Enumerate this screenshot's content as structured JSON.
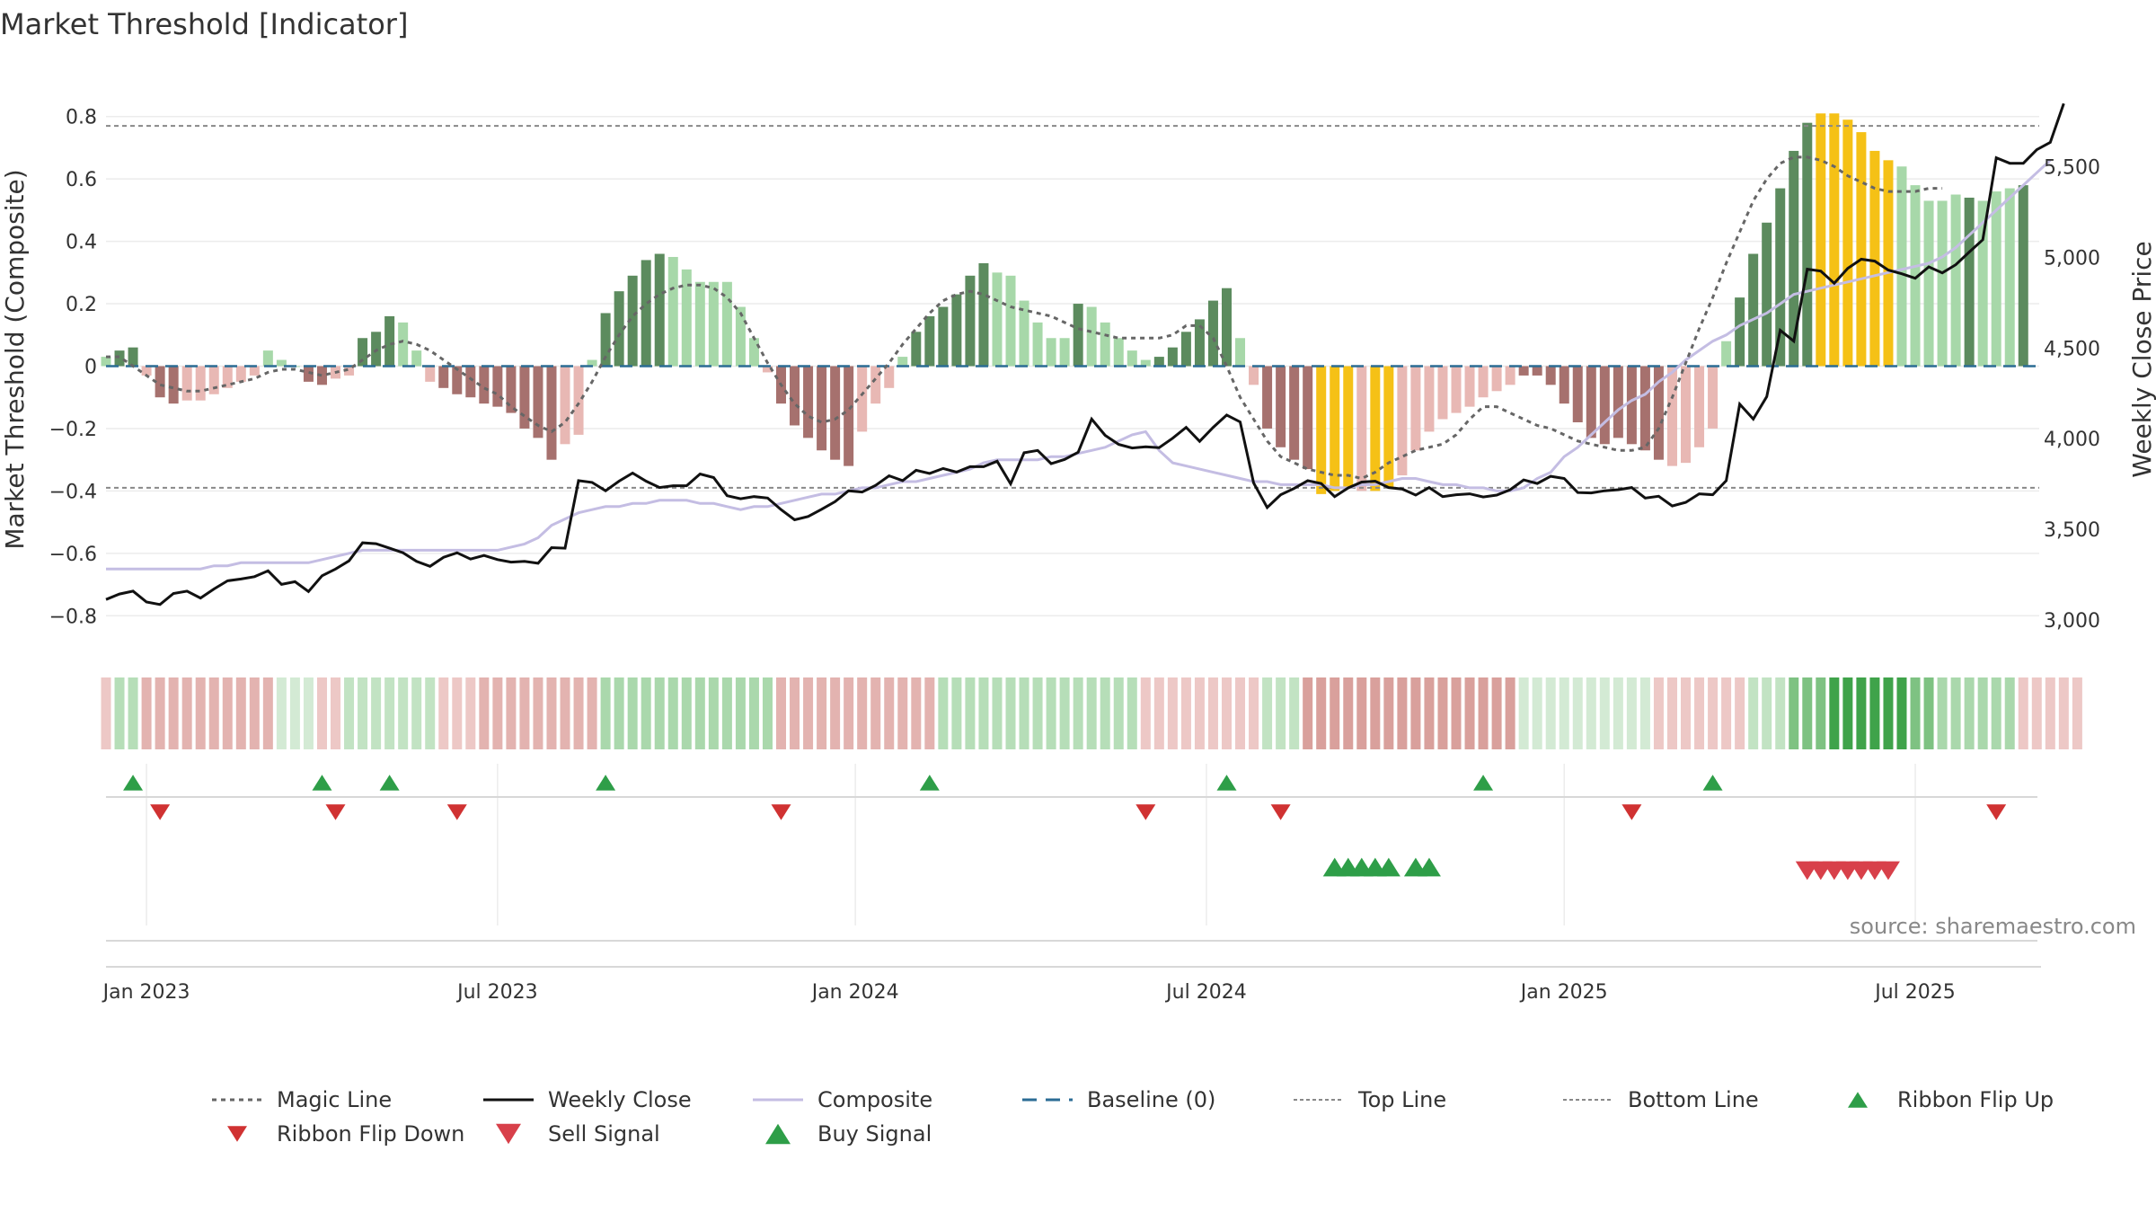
{
  "chart_data": {
    "type": "bar",
    "title": "Market Threshold [Indicator]",
    "ylabel_left": "Market Threshold (Composite)",
    "ylabel_right": "Weekly Close Price",
    "ylim_left": [
      -0.9,
      0.9
    ],
    "ylim_right": [
      2850,
      5950
    ],
    "left_ticks": [
      {
        "v": 0.8,
        "label": "0.8"
      },
      {
        "v": 0.6,
        "label": "0.6"
      },
      {
        "v": 0.4,
        "label": "0.4"
      },
      {
        "v": 0.2,
        "label": "0.2"
      },
      {
        "v": 0,
        "label": "0"
      },
      {
        "v": -0.2,
        "label": "−0.2"
      },
      {
        "v": -0.4,
        "label": "−0.4"
      },
      {
        "v": -0.6,
        "label": "−0.6"
      },
      {
        "v": -0.8,
        "label": "−0.8"
      }
    ],
    "right_ticks": [
      {
        "v": 5500,
        "label": "5,500"
      },
      {
        "v": 5000,
        "label": "5,000"
      },
      {
        "v": 4500,
        "label": "4,500"
      },
      {
        "v": 4000,
        "label": "4,000"
      },
      {
        "v": 3500,
        "label": "3,500"
      },
      {
        "v": 3000,
        "label": "3,000"
      }
    ],
    "x_ticks": [
      {
        "week": 3,
        "label": "Jan 2023"
      },
      {
        "week": 29,
        "label": "Jul 2023"
      },
      {
        "week": 55.5,
        "label": "Jan 2024"
      },
      {
        "week": 81.5,
        "label": "Jul 2024"
      },
      {
        "week": 108,
        "label": "Jan 2025"
      },
      {
        "week": 134,
        "label": "Jul 2025"
      }
    ],
    "top_line": 0.77,
    "bottom_line": -0.39,
    "baseline": 0,
    "source": "source: sharemaestro.com",
    "legend": [
      {
        "key": "magic",
        "label": "Magic Line"
      },
      {
        "key": "close",
        "label": "Weekly Close"
      },
      {
        "key": "composite",
        "label": "Composite"
      },
      {
        "key": "baseline",
        "label": "Baseline (0)"
      },
      {
        "key": "topline",
        "label": "Top Line"
      },
      {
        "key": "bottomline",
        "label": "Bottom Line"
      },
      {
        "key": "flipup",
        "label": "Ribbon Flip Up"
      },
      {
        "key": "flipdown",
        "label": "Ribbon Flip Down"
      },
      {
        "key": "sell",
        "label": "Sell Signal"
      },
      {
        "key": "buy",
        "label": "Buy Signal"
      }
    ],
    "bars": [
      0.03,
      0.05,
      0.06,
      -0.03,
      -0.1,
      -0.12,
      -0.11,
      -0.11,
      -0.09,
      -0.07,
      -0.05,
      -0.03,
      0.05,
      0.02,
      0,
      -0.05,
      -0.06,
      -0.04,
      -0.03,
      0.09,
      0.11,
      0.16,
      0.14,
      0.05,
      -0.05,
      -0.07,
      -0.09,
      -0.1,
      -0.12,
      -0.13,
      -0.15,
      -0.2,
      -0.23,
      -0.3,
      -0.25,
      -0.22,
      0.02,
      0.17,
      0.24,
      0.29,
      0.34,
      0.36,
      0.35,
      0.31,
      0.27,
      0.27,
      0.27,
      0.19,
      0.09,
      -0.02,
      -0.12,
      -0.19,
      -0.23,
      -0.27,
      -0.3,
      -0.32,
      -0.21,
      -0.12,
      -0.07,
      0.03,
      0.11,
      0.16,
      0.19,
      0.23,
      0.29,
      0.33,
      0.3,
      0.29,
      0.21,
      0.14,
      0.09,
      0.09,
      0.2,
      0.19,
      0.14,
      0.09,
      0.05,
      0.02,
      0.03,
      0.06,
      0.11,
      0.15,
      0.21,
      0.25,
      0.09,
      -0.06,
      -0.2,
      -0.26,
      -0.3,
      -0.33,
      -0.41,
      -0.4,
      -0.39,
      -0.4,
      -0.4,
      -0.39,
      -0.35,
      -0.27,
      -0.21,
      -0.17,
      -0.15,
      -0.13,
      -0.1,
      -0.08,
      -0.06,
      -0.03,
      -0.03,
      -0.06,
      -0.12,
      -0.18,
      -0.23,
      -0.25,
      -0.23,
      -0.25,
      -0.27,
      -0.3,
      -0.32,
      -0.31,
      -0.26,
      -0.2,
      0.08,
      0.22,
      0.36,
      0.46,
      0.57,
      0.69,
      0.78,
      0.81,
      0.81,
      0.79,
      0.75,
      0.69,
      0.66,
      0.64,
      0.58,
      0.53,
      0.53,
      0.55,
      0.54,
      0.53,
      0.56,
      0.57,
      0.58
    ],
    "bar_colors": [
      "#a7d8a9",
      "#5c8b5e",
      "#5c8b5e",
      "#e8b8b4",
      "#a6716e",
      "#a6716e",
      "#e8b8b4",
      "#e8b8b4",
      "#e8b8b4",
      "#e8b8b4",
      "#e8b8b4",
      "#e8b8b4",
      "#a7d8a9",
      "#a7d8a9",
      "#a7d8a9",
      "#a6716e",
      "#a6716e",
      "#e8b8b4",
      "#e8b8b4",
      "#5c8b5e",
      "#5c8b5e",
      "#5c8b5e",
      "#a7d8a9",
      "#a7d8a9",
      "#e8b8b4",
      "#a6716e",
      "#a6716e",
      "#a6716e",
      "#a6716e",
      "#a6716e",
      "#a6716e",
      "#a6716e",
      "#a6716e",
      "#a6716e",
      "#e8b8b4",
      "#e8b8b4",
      "#a7d8a9",
      "#5c8b5e",
      "#5c8b5e",
      "#5c8b5e",
      "#5c8b5e",
      "#5c8b5e",
      "#a7d8a9",
      "#a7d8a9",
      "#a7d8a9",
      "#a7d8a9",
      "#a7d8a9",
      "#a7d8a9",
      "#a7d8a9",
      "#e8b8b4",
      "#a6716e",
      "#a6716e",
      "#a6716e",
      "#a6716e",
      "#a6716e",
      "#a6716e",
      "#e8b8b4",
      "#e8b8b4",
      "#e8b8b4",
      "#a7d8a9",
      "#5c8b5e",
      "#5c8b5e",
      "#5c8b5e",
      "#5c8b5e",
      "#5c8b5e",
      "#5c8b5e",
      "#a7d8a9",
      "#a7d8a9",
      "#a7d8a9",
      "#a7d8a9",
      "#a7d8a9",
      "#a7d8a9",
      "#5c8b5e",
      "#a7d8a9",
      "#a7d8a9",
      "#a7d8a9",
      "#a7d8a9",
      "#a7d8a9",
      "#5c8b5e",
      "#5c8b5e",
      "#5c8b5e",
      "#5c8b5e",
      "#5c8b5e",
      "#5c8b5e",
      "#a7d8a9",
      "#e8b8b4",
      "#a6716e",
      "#a6716e",
      "#a6716e",
      "#a6716e",
      "#f5c116",
      "#f5c116",
      "#f5c116",
      "#e8b8b4",
      "#f5c116",
      "#f5c116",
      "#e8b8b4",
      "#e8b8b4",
      "#e8b8b4",
      "#e8b8b4",
      "#e8b8b4",
      "#e8b8b4",
      "#e8b8b4",
      "#e8b8b4",
      "#e8b8b4",
      "#a6716e",
      "#a6716e",
      "#a6716e",
      "#a6716e",
      "#a6716e",
      "#a6716e",
      "#a6716e",
      "#a6716e",
      "#a6716e",
      "#a6716e",
      "#a6716e",
      "#e8b8b4",
      "#e8b8b4",
      "#e8b8b4",
      "#e8b8b4",
      "#a7d8a9",
      "#5c8b5e",
      "#5c8b5e",
      "#5c8b5e",
      "#5c8b5e",
      "#5c8b5e",
      "#5c8b5e",
      "#f5c116",
      "#f5c116",
      "#f5c116",
      "#f5c116",
      "#f5c116",
      "#f5c116",
      "#a7d8a9",
      "#a7d8a9",
      "#a7d8a9",
      "#a7d8a9",
      "#a7d8a9",
      "#5c8b5e",
      "#a7d8a9",
      "#a7d8a9",
      "#a7d8a9",
      "#5c8b5e",
      "#5c8b5e"
    ],
    "ribbon_colors": [
      "#edc8c6",
      "#b6deb8",
      "#b6deb8",
      "#e3b3b0",
      "#e3b3b0",
      "#e3b3b0",
      "#e3b3b0",
      "#e3b3b0",
      "#e3b3b0",
      "#e3b3b0",
      "#e3b3b0",
      "#e3b3b0",
      "#e3b3b0",
      "#d3ead4",
      "#d3ead4",
      "#d3ead4",
      "#edc8c6",
      "#edc8c6",
      "#c2e3c3",
      "#c2e3c3",
      "#c2e3c3",
      "#c2e3c3",
      "#c2e3c3",
      "#c2e3c3",
      "#c2e3c3",
      "#edc8c6",
      "#edc8c6",
      "#edc8c6",
      "#e3b3b0",
      "#e3b3b0",
      "#e3b3b0",
      "#e3b3b0",
      "#e3b3b0",
      "#e3b3b0",
      "#e3b3b0",
      "#e3b3b0",
      "#e3b3b0",
      "#aad8ac",
      "#aad8ac",
      "#aad8ac",
      "#aad8ac",
      "#aad8ac",
      "#aad8ac",
      "#aad8ac",
      "#aad8ac",
      "#aad8ac",
      "#aad8ac",
      "#aad8ac",
      "#aad8ac",
      "#aad8ac",
      "#e3b3b0",
      "#e3b3b0",
      "#e3b3b0",
      "#e3b3b0",
      "#e3b3b0",
      "#e3b3b0",
      "#e3b3b0",
      "#e3b3b0",
      "#e3b3b0",
      "#e3b3b0",
      "#e3b3b0",
      "#e3b3b0",
      "#b6deb8",
      "#b6deb8",
      "#b6deb8",
      "#b6deb8",
      "#b6deb8",
      "#b6deb8",
      "#b6deb8",
      "#b6deb8",
      "#b6deb8",
      "#b6deb8",
      "#b6deb8",
      "#b6deb8",
      "#b6deb8",
      "#b6deb8",
      "#b6deb8",
      "#edc8c6",
      "#edc8c6",
      "#edc8c6",
      "#edc8c6",
      "#edc8c6",
      "#edc8c6",
      "#edc8c6",
      "#edc8c6",
      "#edc8c6",
      "#c2e3c3",
      "#c2e3c3",
      "#c2e3c3",
      "#d9a09c",
      "#d9a09c",
      "#d9a09c",
      "#d9a09c",
      "#d9a09c",
      "#d9a09c",
      "#d9a09c",
      "#d9a09c",
      "#d9a09c",
      "#d9a09c",
      "#d9a09c",
      "#d9a09c",
      "#d9a09c",
      "#d9a09c",
      "#d9a09c",
      "#d9a09c",
      "#d3ead4",
      "#d3ead4",
      "#d3ead4",
      "#d3ead4",
      "#d3ead4",
      "#d3ead4",
      "#d3ead4",
      "#d3ead4",
      "#d3ead4",
      "#d3ead4",
      "#edc8c6",
      "#edc8c6",
      "#edc8c6",
      "#edc8c6",
      "#edc8c6",
      "#edc8c6",
      "#edc8c6",
      "#c2e3c3",
      "#c2e3c3",
      "#c2e3c3",
      "#7ec282",
      "#7ec282",
      "#7ec282",
      "#3fa34a",
      "#3fa34a",
      "#3fa34a",
      "#3fa34a",
      "#3fa34a",
      "#3fa34a",
      "#7ec282",
      "#7ec282",
      "#aad8ac",
      "#aad8ac",
      "#aad8ac",
      "#aad8ac",
      "#aad8ac",
      "#aad8ac",
      "#edc8c6",
      "#edc8c6",
      "#edc8c6",
      "#edc8c6",
      "#edc8c6"
    ],
    "magic_line": [
      0.03,
      0.03,
      0,
      -0.03,
      -0.06,
      -0.07,
      -0.08,
      -0.08,
      -0.07,
      -0.06,
      -0.05,
      -0.04,
      -0.02,
      -0.01,
      -0.01,
      -0.02,
      -0.03,
      -0.02,
      -0.01,
      0.02,
      0.05,
      0.07,
      0.08,
      0.07,
      0.05,
      0.02,
      -0.01,
      -0.04,
      -0.07,
      -0.09,
      -0.13,
      -0.16,
      -0.19,
      -0.21,
      -0.18,
      -0.12,
      -0.05,
      0.03,
      0.1,
      0.16,
      0.2,
      0.23,
      0.25,
      0.26,
      0.26,
      0.25,
      0.22,
      0.17,
      0.09,
      0.01,
      -0.06,
      -0.12,
      -0.16,
      -0.18,
      -0.17,
      -0.14,
      -0.09,
      -0.04,
      0.01,
      0.07,
      0.12,
      0.17,
      0.21,
      0.23,
      0.24,
      0.23,
      0.21,
      0.19,
      0.18,
      0.17,
      0.16,
      0.14,
      0.12,
      0.11,
      0.1,
      0.09,
      0.09,
      0.09,
      0.09,
      0.1,
      0.13,
      0.13,
      0.09,
      0,
      -0.1,
      -0.17,
      -0.24,
      -0.29,
      -0.31,
      -0.33,
      -0.34,
      -0.35,
      -0.35,
      -0.36,
      -0.34,
      -0.31,
      -0.29,
      -0.27,
      -0.26,
      -0.25,
      -0.22,
      -0.17,
      -0.13,
      -0.13,
      -0.15,
      -0.17,
      -0.19,
      -0.2,
      -0.22,
      -0.24,
      -0.25,
      -0.26,
      -0.27,
      -0.27,
      -0.26,
      -0.2,
      -0.1,
      0.01,
      0.12,
      0.22,
      0.33,
      0.43,
      0.53,
      0.6,
      0.65,
      0.67,
      0.67,
      0.66,
      0.64,
      0.61,
      0.59,
      0.57,
      0.56,
      0.56,
      0.56,
      0.57,
      0.57
    ],
    "composite": [
      -0.65,
      -0.65,
      -0.65,
      -0.65,
      -0.65,
      -0.65,
      -0.65,
      -0.65,
      -0.64,
      -0.64,
      -0.63,
      -0.63,
      -0.63,
      -0.63,
      -0.63,
      -0.63,
      -0.62,
      -0.61,
      -0.6,
      -0.59,
      -0.59,
      -0.59,
      -0.59,
      -0.59,
      -0.59,
      -0.59,
      -0.59,
      -0.59,
      -0.59,
      -0.59,
      -0.58,
      -0.57,
      -0.55,
      -0.51,
      -0.49,
      -0.47,
      -0.46,
      -0.45,
      -0.45,
      -0.44,
      -0.44,
      -0.43,
      -0.43,
      -0.43,
      -0.44,
      -0.44,
      -0.45,
      -0.46,
      -0.45,
      -0.45,
      -0.44,
      -0.43,
      -0.42,
      -0.41,
      -0.41,
      -0.4,
      -0.39,
      -0.39,
      -0.38,
      -0.37,
      -0.37,
      -0.36,
      -0.35,
      -0.34,
      -0.33,
      -0.31,
      -0.3,
      -0.3,
      -0.3,
      -0.3,
      -0.29,
      -0.29,
      -0.28,
      -0.27,
      -0.26,
      -0.24,
      -0.22,
      -0.21,
      -0.27,
      -0.31,
      -0.32,
      -0.33,
      -0.34,
      -0.35,
      -0.36,
      -0.37,
      -0.37,
      -0.38,
      -0.38,
      -0.38,
      -0.38,
      -0.39,
      -0.39,
      -0.38,
      -0.38,
      -0.37,
      -0.36,
      -0.36,
      -0.37,
      -0.38,
      -0.38,
      -0.39,
      -0.39,
      -0.4,
      -0.4,
      -0.39,
      -0.36,
      -0.34,
      -0.29,
      -0.26,
      -0.22,
      -0.18,
      -0.14,
      -0.11,
      -0.09,
      -0.05,
      -0.02,
      0.02,
      0.05,
      0.08,
      0.1,
      0.13,
      0.15,
      0.17,
      0.2,
      0.23,
      0.24,
      0.25,
      0.26,
      0.27,
      0.28,
      0.29,
      0.3,
      0.31,
      0.32,
      0.33,
      0.35,
      0.38,
      0.42,
      0.46,
      0.5,
      0.54,
      0.58,
      0.62,
      0.66
    ],
    "weekly_close": [
      3112,
      3142,
      3158,
      3098,
      3084,
      3145,
      3158,
      3120,
      3170,
      3215,
      3225,
      3238,
      3270,
      3195,
      3210,
      3156,
      3243,
      3280,
      3325,
      3425,
      3420,
      3395,
      3370,
      3322,
      3295,
      3345,
      3370,
      3335,
      3355,
      3332,
      3318,
      3322,
      3312,
      3398,
      3395,
      3768,
      3758,
      3712,
      3765,
      3810,
      3765,
      3730,
      3740,
      3740,
      3805,
      3785,
      3685,
      3668,
      3680,
      3672,
      3608,
      3552,
      3570,
      3610,
      3652,
      3712,
      3705,
      3742,
      3795,
      3768,
      3825,
      3808,
      3835,
      3815,
      3845,
      3845,
      3875,
      3750,
      3922,
      3935,
      3862,
      3885,
      3925,
      4108,
      4018,
      3968,
      3948,
      3955,
      3950,
      4002,
      4062,
      3985,
      4062,
      4130,
      4092,
      3755,
      3620,
      3690,
      3725,
      3768,
      3752,
      3680,
      3728,
      3760,
      3765,
      3730,
      3722,
      3688,
      3730,
      3680,
      3690,
      3695,
      3678,
      3688,
      3718,
      3772,
      3752,
      3792,
      3780,
      3702,
      3700,
      3712,
      3718,
      3730,
      3672,
      3682,
      3628,
      3648,
      3695,
      3690,
      3768,
      4190,
      4108,
      4232,
      4598,
      4538,
      4935,
      4925,
      4858,
      4940,
      4990,
      4980,
      4930,
      4910,
      4885,
      4948,
      4915,
      4960,
      5030,
      5098,
      5550,
      5520,
      5520,
      5595,
      5635,
      5850
    ],
    "flip_up_weeks": [
      2,
      16,
      21,
      37,
      61,
      83,
      102,
      119
    ],
    "flip_down_weeks": [
      4,
      17,
      26,
      50,
      77,
      87,
      113,
      140
    ],
    "buy_signal_weeks": [
      91,
      92,
      93,
      94,
      95,
      97,
      98
    ],
    "sell_signal_weeks": [
      126,
      127,
      128,
      129,
      130,
      131,
      132
    ]
  }
}
